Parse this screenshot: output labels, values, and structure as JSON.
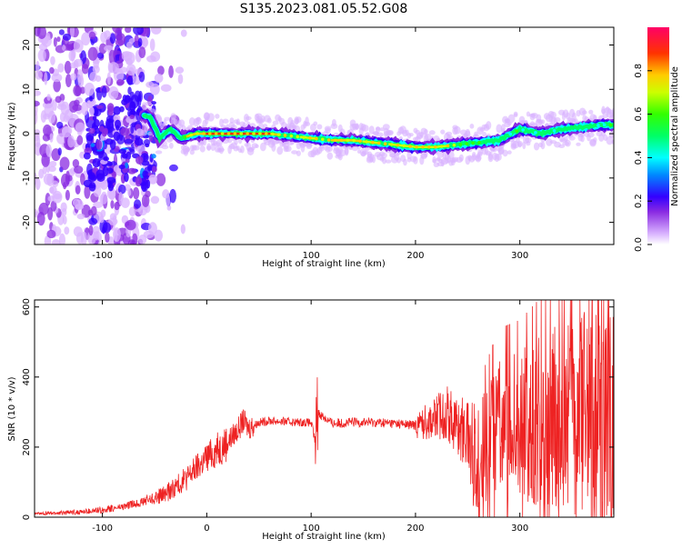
{
  "title": "S135.2023.081.05.52.G08",
  "chart_data": [
    {
      "type": "heatmap",
      "xlabel": "Height of straight line (km)",
      "ylabel": "Frequency (Hz)",
      "xlim": [
        -165,
        390
      ],
      "ylim": [
        -25,
        24
      ],
      "xticks": [
        -100,
        0,
        100,
        200,
        300
      ],
      "yticks": [
        -20,
        -10,
        0,
        10,
        20
      ],
      "colorbar": {
        "label": "Normalized spectral amplitude",
        "range": [
          0,
          1
        ],
        "ticks": [
          0.0,
          0.2,
          0.4,
          0.6,
          0.8
        ]
      },
      "ridge": {
        "x": [
          -55,
          -45,
          -35,
          -25,
          -10,
          0,
          20,
          40,
          60,
          80,
          100,
          120,
          140,
          160,
          180,
          200,
          220,
          240,
          260,
          280,
          300,
          320,
          340,
          360,
          380,
          390
        ],
        "y": [
          4,
          -1,
          1,
          -1,
          0,
          0,
          0,
          0,
          0,
          -0.5,
          -1,
          -1.5,
          -1.5,
          -2,
          -2.5,
          -3,
          -3,
          -2.5,
          -2,
          -1.5,
          1,
          0,
          1,
          1.5,
          2,
          2
        ]
      }
    },
    {
      "type": "line",
      "xlabel": "Height of straight line (km)",
      "ylabel": "SNR (10 * v/v)",
      "xlim": [
        -165,
        390
      ],
      "ylim": [
        0,
        620
      ],
      "xticks": [
        -100,
        0,
        100,
        200,
        300
      ],
      "yticks": [
        0,
        200,
        400,
        600
      ],
      "color": "#ee2222",
      "series": [
        {
          "x": [
            -165,
            -140,
            -120,
            -100,
            -80,
            -60,
            -40,
            -20,
            0,
            20,
            30,
            35,
            40,
            50,
            60,
            80,
            100,
            104,
            106,
            120,
            150,
            180,
            200,
            220,
            230,
            240,
            250,
            260,
            280,
            300,
            320,
            340,
            360,
            380,
            390
          ],
          "y": [
            10,
            12,
            15,
            20,
            30,
            45,
            65,
            110,
            170,
            215,
            250,
            275,
            255,
            270,
            275,
            272,
            270,
            215,
            300,
            268,
            272,
            268,
            262,
            285,
            300,
            260,
            235,
            150,
            270,
            255,
            280,
            290,
            300,
            280,
            270
          ]
        }
      ]
    }
  ]
}
